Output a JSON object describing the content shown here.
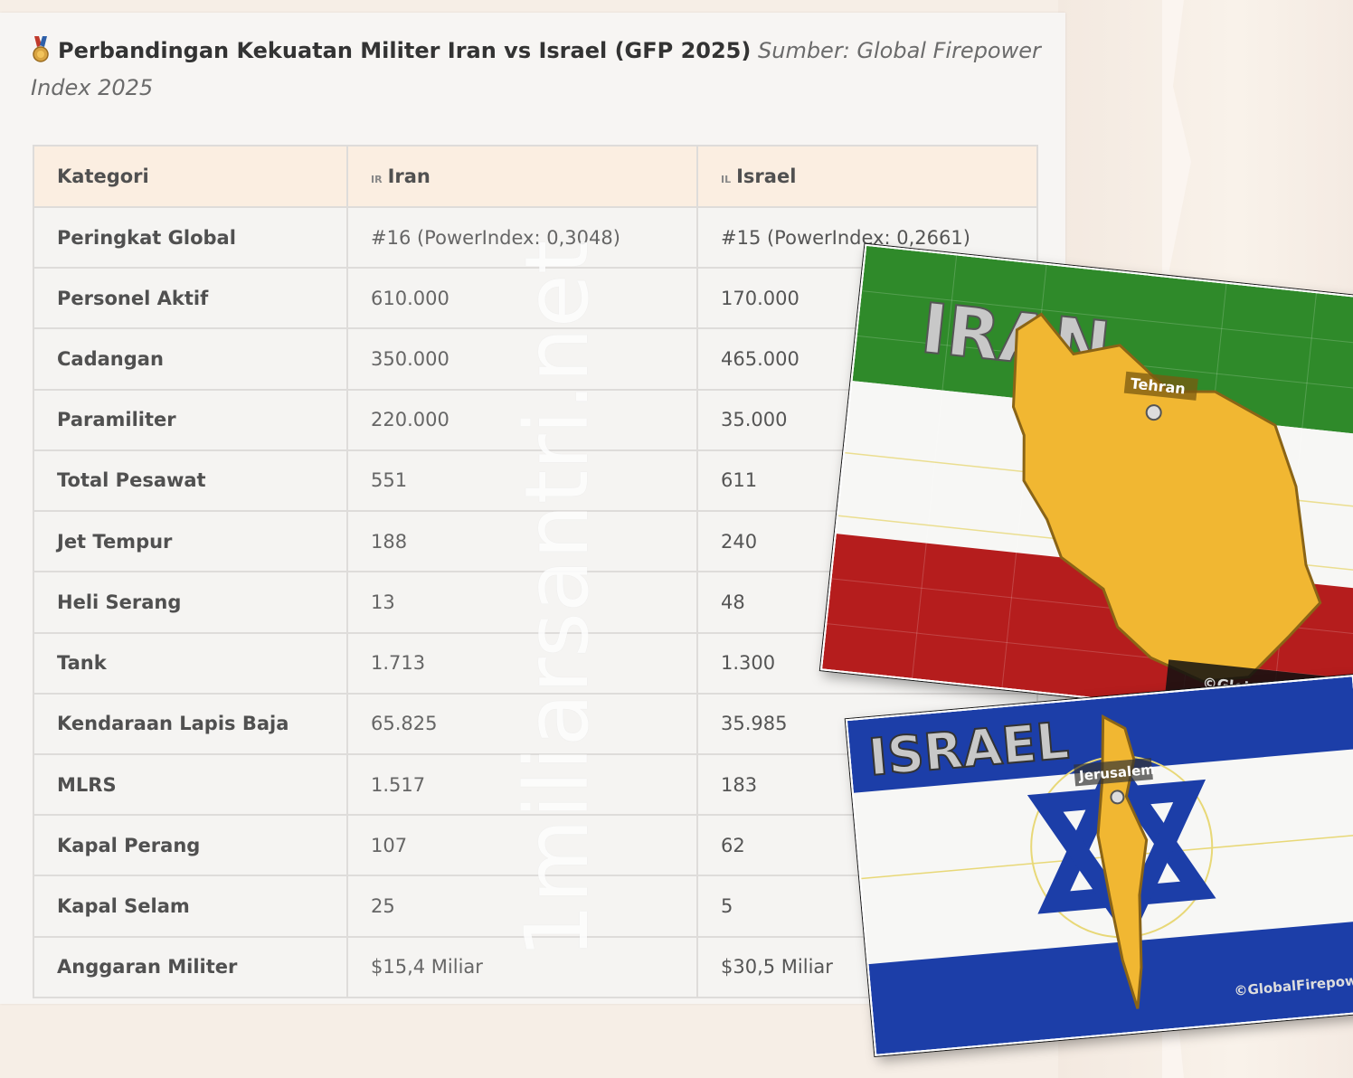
{
  "header": {
    "title_bold": "Perbandingan Kekuatan Militer Iran vs Israel (GFP 2025)",
    "title_source": "Sumber: Global Firepower Index 2025",
    "icon": "medal-icon"
  },
  "table": {
    "headers": {
      "category": "Kategori",
      "iran_code": "IR",
      "iran": "Iran",
      "israel_code": "IL",
      "israel": "Israel"
    },
    "rows": [
      {
        "category": "Peringkat Global",
        "iran": "#16 (PowerIndex: 0,3048)",
        "israel": "#15 (PowerIndex: 0,2661)"
      },
      {
        "category": "Personel Aktif",
        "iran": "610.000",
        "israel": "170.000"
      },
      {
        "category": "Cadangan",
        "iran": "350.000",
        "israel": "465.000"
      },
      {
        "category": "Paramiliter",
        "iran": "220.000",
        "israel": "35.000"
      },
      {
        "category": "Total Pesawat",
        "iran": "551",
        "israel": "611"
      },
      {
        "category": "Jet Tempur",
        "iran": "188",
        "israel": "240"
      },
      {
        "category": "Heli Serang",
        "iran": "13",
        "israel": "48"
      },
      {
        "category": "Tank",
        "iran": "1.713",
        "israel": "1.300"
      },
      {
        "category": "Kendaraan Lapis Baja",
        "iran": "65.825",
        "israel": "35.985"
      },
      {
        "category": "MLRS",
        "iran": "1.517",
        "israel": "183"
      },
      {
        "category": "Kapal Perang",
        "iran": "107",
        "israel": "62"
      },
      {
        "category": "Kapal Selam",
        "iran": "25",
        "israel": "5"
      },
      {
        "category": "Anggaran Militer",
        "iran": "$15,4 Miliar",
        "israel": "$30,5 Miliar"
      }
    ]
  },
  "watermark": "1miliarsantri.net",
  "images": {
    "iran": {
      "title": "IRAN",
      "city": "Tehran",
      "credit": "©GlobalFirepower"
    },
    "israel": {
      "title": "ISRAEL",
      "city": "Jerusalem",
      "credit": "©GlobalFirepower"
    }
  },
  "colors": {
    "header_bg": "#fbeee1",
    "iran_green": "#2f8a2a",
    "iran_red": "#b51d1d",
    "israel_blue": "#1c3ea8",
    "map_yellow": "#f1b732"
  }
}
